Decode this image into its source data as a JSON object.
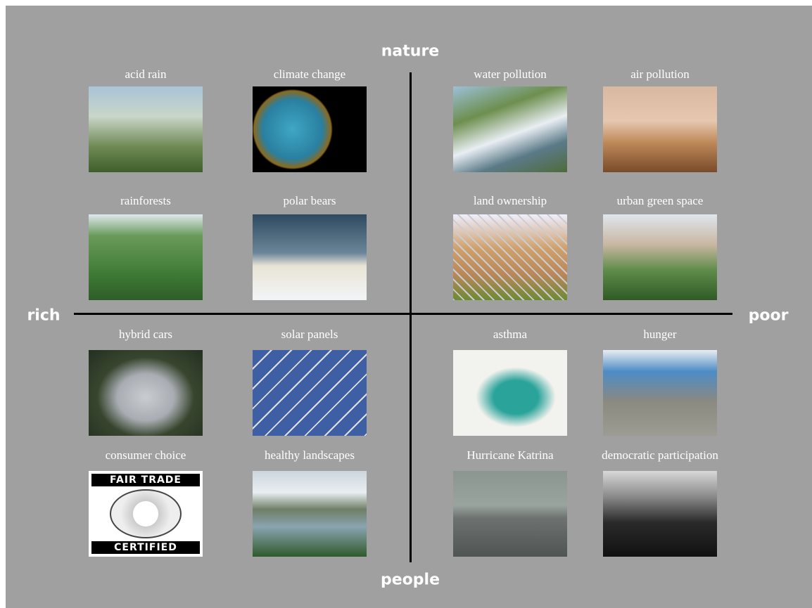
{
  "axes": {
    "top": "nature",
    "bottom": "people",
    "left": "rich",
    "right": "poor"
  },
  "items": [
    {
      "label": "acid rain"
    },
    {
      "label": "climate change"
    },
    {
      "label": "water pollution"
    },
    {
      "label": "air pollution"
    },
    {
      "label": "rainforests"
    },
    {
      "label": "polar bears"
    },
    {
      "label": "land ownership"
    },
    {
      "label": "urban green space"
    },
    {
      "label": "hybrid cars"
    },
    {
      "label": "solar panels"
    },
    {
      "label": "asthma"
    },
    {
      "label": "hunger"
    },
    {
      "label": "consumer choice"
    },
    {
      "label": "healthy landscapes"
    },
    {
      "label": "Hurricane Katrina"
    },
    {
      "label": "democratic participation"
    }
  ],
  "logo": {
    "top": "FAIR TRADE",
    "bottom": "CERTIFIED"
  }
}
